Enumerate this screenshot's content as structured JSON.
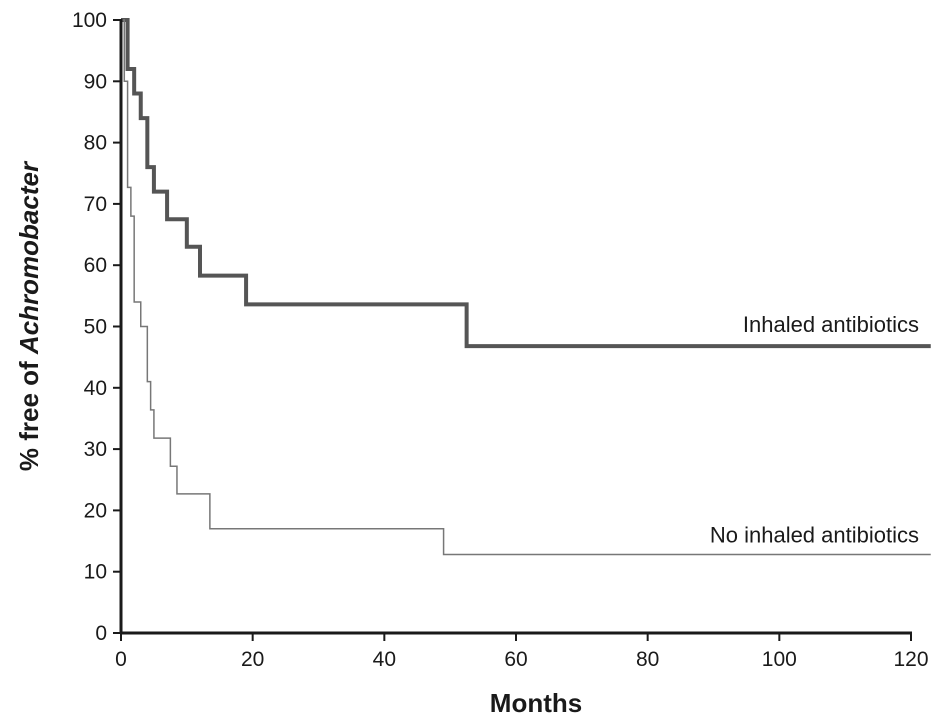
{
  "chart_data": {
    "type": "line",
    "step": true,
    "xlabel": "Months",
    "ylabel_prefix": "% free of ",
    "ylabel_italic": "Achromobacter",
    "xlim": [
      0,
      120
    ],
    "ylim": [
      0,
      100
    ],
    "x_ticks": [
      0,
      20,
      40,
      60,
      80,
      100,
      120
    ],
    "y_ticks": [
      0,
      10,
      20,
      30,
      40,
      50,
      60,
      70,
      80,
      90,
      100
    ],
    "grid": false,
    "legend": "none",
    "series": [
      {
        "name": "Inhaled antibiotics",
        "color": "#555555",
        "points": [
          [
            0,
            100
          ],
          [
            1,
            100
          ],
          [
            1,
            92
          ],
          [
            2,
            92
          ],
          [
            2,
            88
          ],
          [
            3,
            88
          ],
          [
            3,
            84
          ],
          [
            4,
            84
          ],
          [
            4,
            76
          ],
          [
            5,
            76
          ],
          [
            5,
            72
          ],
          [
            7,
            72
          ],
          [
            7,
            67.5
          ],
          [
            10,
            67.5
          ],
          [
            10,
            63
          ],
          [
            12,
            63
          ],
          [
            12,
            58.3
          ],
          [
            19,
            58.3
          ],
          [
            19,
            53.6
          ],
          [
            52.5,
            53.6
          ],
          [
            52.5,
            46.8
          ],
          [
            123,
            46.8
          ]
        ]
      },
      {
        "name": "No inhaled antibiotics",
        "color": "#777777",
        "points": [
          [
            0,
            100
          ],
          [
            0.5,
            100
          ],
          [
            0.5,
            90
          ],
          [
            1,
            90
          ],
          [
            1,
            72.7
          ],
          [
            1.5,
            72.7
          ],
          [
            1.5,
            68
          ],
          [
            2,
            68
          ],
          [
            2,
            54
          ],
          [
            3,
            54
          ],
          [
            3,
            50
          ],
          [
            4,
            50
          ],
          [
            4,
            41
          ],
          [
            4.5,
            41
          ],
          [
            4.5,
            36.4
          ],
          [
            5,
            36.4
          ],
          [
            5,
            31.8
          ],
          [
            7.5,
            31.8
          ],
          [
            7.5,
            27.2
          ],
          [
            8.5,
            27.2
          ],
          [
            8.5,
            22.7
          ],
          [
            13.5,
            22.7
          ],
          [
            13.5,
            17
          ],
          [
            49,
            17
          ],
          [
            49,
            12.8
          ],
          [
            123,
            12.8
          ]
        ]
      }
    ]
  }
}
